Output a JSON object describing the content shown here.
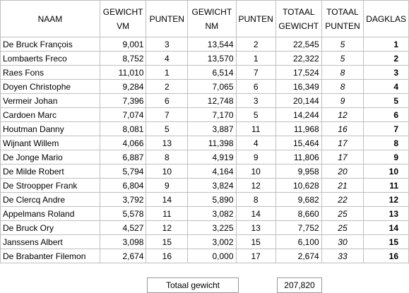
{
  "table": {
    "headers": [
      "NAAM",
      "GEWICHT VM",
      "PUNTEN",
      "GEWICHT NM",
      "PUNTEN",
      "TOTAAL GEWICHT",
      "TOTAAL PUNTEN",
      "DAGKLAS"
    ],
    "rows": [
      [
        "De Bruck François",
        "9,001",
        "3",
        "13,544",
        "2",
        "22,545",
        "5",
        "1"
      ],
      [
        "Lombaerts Freco",
        "8,752",
        "4",
        "13,570",
        "1",
        "22,322",
        "5",
        "2"
      ],
      [
        "Raes Fons",
        "11,010",
        "1",
        "6,514",
        "7",
        "17,524",
        "8",
        "3"
      ],
      [
        "Doyen Christophe",
        "9,284",
        "2",
        "7,065",
        "6",
        "16,349",
        "8",
        "4"
      ],
      [
        "Vermeir Johan",
        "7,396",
        "6",
        "12,748",
        "3",
        "20,144",
        "9",
        "5"
      ],
      [
        "Cardoen Marc",
        "7,074",
        "7",
        "7,170",
        "5",
        "14,244",
        "12",
        "6"
      ],
      [
        "Houtman Danny",
        "8,081",
        "5",
        "3,887",
        "11",
        "11,968",
        "16",
        "7"
      ],
      [
        "Wijnant Willem",
        "4,066",
        "13",
        "11,398",
        "4",
        "15,464",
        "17",
        "8"
      ],
      [
        "De Jonge Mario",
        "6,887",
        "8",
        "4,919",
        "9",
        "11,806",
        "17",
        "9"
      ],
      [
        "De Milde Robert",
        "5,794",
        "10",
        "4,164",
        "10",
        "9,958",
        "20",
        "10"
      ],
      [
        "De Stroopper Frank",
        "6,804",
        "9",
        "3,824",
        "12",
        "10,628",
        "21",
        "11"
      ],
      [
        "De Clercq Andre",
        "3,792",
        "14",
        "5,890",
        "8",
        "9,682",
        "22",
        "12"
      ],
      [
        "Appelmans Roland",
        "5,578",
        "11",
        "3,082",
        "14",
        "8,660",
        "25",
        "13"
      ],
      [
        "De Bruck Ory",
        "4,527",
        "12",
        "3,225",
        "13",
        "7,752",
        "25",
        "14"
      ],
      [
        "Janssens Albert",
        "3,098",
        "15",
        "3,002",
        "15",
        "6,100",
        "30",
        "15"
      ],
      [
        "De Brabanter Filemon",
        "2,674",
        "16",
        "0,000",
        "17",
        "2,674",
        "33",
        "16"
      ]
    ]
  },
  "footer": {
    "label": "Totaal gewicht",
    "value": "207,820"
  }
}
